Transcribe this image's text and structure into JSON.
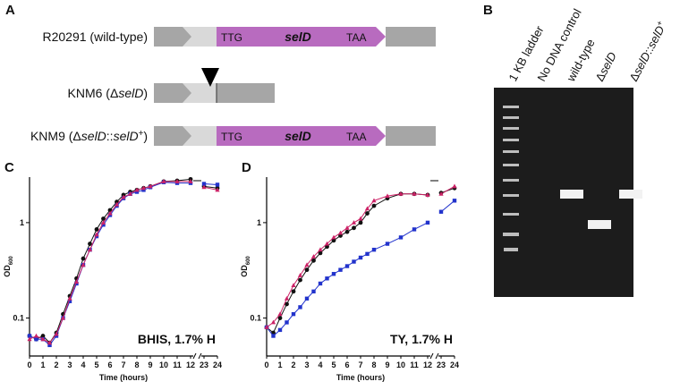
{
  "panel_a": {
    "letter": "A",
    "rows": [
      {
        "label": [
          {
            "text": "R20291 (wild-type)"
          }
        ],
        "gene": {
          "start": "TTG",
          "name": "selD",
          "stop": "TAA"
        }
      },
      {
        "label": [
          {
            "text": "KNM6 (Δ"
          },
          {
            "text": "selD",
            "style": "italic"
          },
          {
            "text": ")"
          }
        ]
      },
      {
        "label": [
          {
            "text": "KNM9 (Δ"
          },
          {
            "text": "selD",
            "style": "italic"
          },
          {
            "text": "::"
          },
          {
            "text": "selD",
            "style": "italic"
          },
          {
            "text": "+",
            "style": "sup"
          },
          {
            "text": ")"
          }
        ],
        "gene": {
          "start": "TTG",
          "name": "selD",
          "stop": "TAA"
        }
      }
    ]
  },
  "panel_b": {
    "letter": "B",
    "lanes": [
      [
        {
          "text": "1 KB ladder"
        }
      ],
      [
        {
          "text": "No DNA control"
        }
      ],
      [
        {
          "text": "wild-type"
        }
      ],
      [
        {
          "text": "Δ"
        },
        {
          "text": "selD",
          "style": "italic"
        }
      ],
      [
        {
          "text": "Δ"
        },
        {
          "text": "selD",
          "style": "italic"
        },
        {
          "text": "::"
        },
        {
          "text": "selD",
          "style": "italic"
        },
        {
          "text": "+",
          "style": "sup"
        }
      ]
    ]
  },
  "chart_data": [
    {
      "type": "line",
      "letter": "C",
      "annotation": "BHIS, 1.7% H",
      "xlabel": "Time (hours)",
      "ylabel": "OD",
      "ylabel_sub": "600",
      "ylog": true,
      "ylim": [
        0.04,
        3
      ],
      "yticks": [
        0.1,
        1
      ],
      "xlim": [
        0,
        24
      ],
      "xticks": [
        0,
        1,
        2,
        3,
        4,
        5,
        6,
        7,
        8,
        9,
        10,
        11,
        12,
        23,
        24
      ],
      "x": [
        0,
        0.5,
        1,
        1.5,
        2,
        2.5,
        3,
        3.5,
        4,
        4.5,
        5,
        5.5,
        6,
        6.5,
        7,
        7.5,
        8,
        8.5,
        9,
        10,
        11,
        12,
        23,
        24
      ],
      "series": [
        {
          "color": "#111111",
          "marker": "circle",
          "values": [
            0.065,
            0.06,
            0.065,
            0.055,
            0.07,
            0.11,
            0.17,
            0.26,
            0.42,
            0.6,
            0.85,
            1.1,
            1.35,
            1.65,
            1.95,
            2.1,
            2.2,
            2.3,
            2.4,
            2.7,
            2.75,
            2.85,
            2.4,
            2.3
          ]
        },
        {
          "color": "#2233cc",
          "marker": "square",
          "values": [
            0.065,
            0.06,
            0.06,
            0.052,
            0.065,
            0.1,
            0.15,
            0.23,
            0.36,
            0.52,
            0.72,
            0.95,
            1.2,
            1.5,
            1.8,
            2.0,
            2.1,
            2.2,
            2.35,
            2.65,
            2.6,
            2.6,
            2.55,
            2.5
          ]
        },
        {
          "color": "#cc2266",
          "marker": "triangle",
          "values": [
            0.06,
            0.065,
            0.06,
            0.055,
            0.068,
            0.1,
            0.16,
            0.24,
            0.36,
            0.52,
            0.75,
            1.0,
            1.25,
            1.55,
            1.85,
            2.0,
            2.2,
            2.3,
            2.4,
            2.7,
            2.7,
            2.7,
            2.35,
            2.2
          ]
        }
      ]
    },
    {
      "type": "line",
      "letter": "D",
      "annotation": "TY, 1.7% H",
      "xlabel": "Time (hours)",
      "ylabel": "OD",
      "ylabel_sub": "600",
      "ylog": true,
      "ylim": [
        0.04,
        3
      ],
      "yticks": [
        0.1,
        1
      ],
      "xlim": [
        0,
        24
      ],
      "xticks": [
        0,
        1,
        2,
        3,
        4,
        5,
        6,
        7,
        8,
        9,
        10,
        11,
        12,
        23,
        24
      ],
      "x": [
        0,
        0.5,
        1,
        1.5,
        2,
        2.5,
        3,
        3.5,
        4,
        4.5,
        5,
        5.5,
        6,
        6.5,
        7,
        7.5,
        8,
        9,
        10,
        11,
        12,
        23,
        24
      ],
      "series": [
        {
          "color": "#111111",
          "marker": "circle",
          "values": [
            0.08,
            0.07,
            0.1,
            0.14,
            0.19,
            0.25,
            0.32,
            0.4,
            0.48,
            0.56,
            0.65,
            0.73,
            0.8,
            0.88,
            1.0,
            1.25,
            1.5,
            1.8,
            2.0,
            2.0,
            1.95,
            2.05,
            2.3
          ]
        },
        {
          "color": "#2233cc",
          "marker": "square",
          "values": [
            0.08,
            0.065,
            0.075,
            0.09,
            0.11,
            0.13,
            0.16,
            0.19,
            0.23,
            0.26,
            0.29,
            0.32,
            0.35,
            0.39,
            0.43,
            0.47,
            0.52,
            0.6,
            0.7,
            0.85,
            1.0,
            1.3,
            1.7
          ]
        },
        {
          "color": "#cc2266",
          "marker": "triangle",
          "values": [
            0.08,
            0.09,
            0.11,
            0.16,
            0.22,
            0.28,
            0.36,
            0.44,
            0.52,
            0.6,
            0.7,
            0.78,
            0.88,
            1.0,
            1.1,
            1.4,
            1.7,
            1.9,
            2.0,
            2.0,
            1.95,
            2.0,
            2.4
          ]
        }
      ]
    }
  ]
}
